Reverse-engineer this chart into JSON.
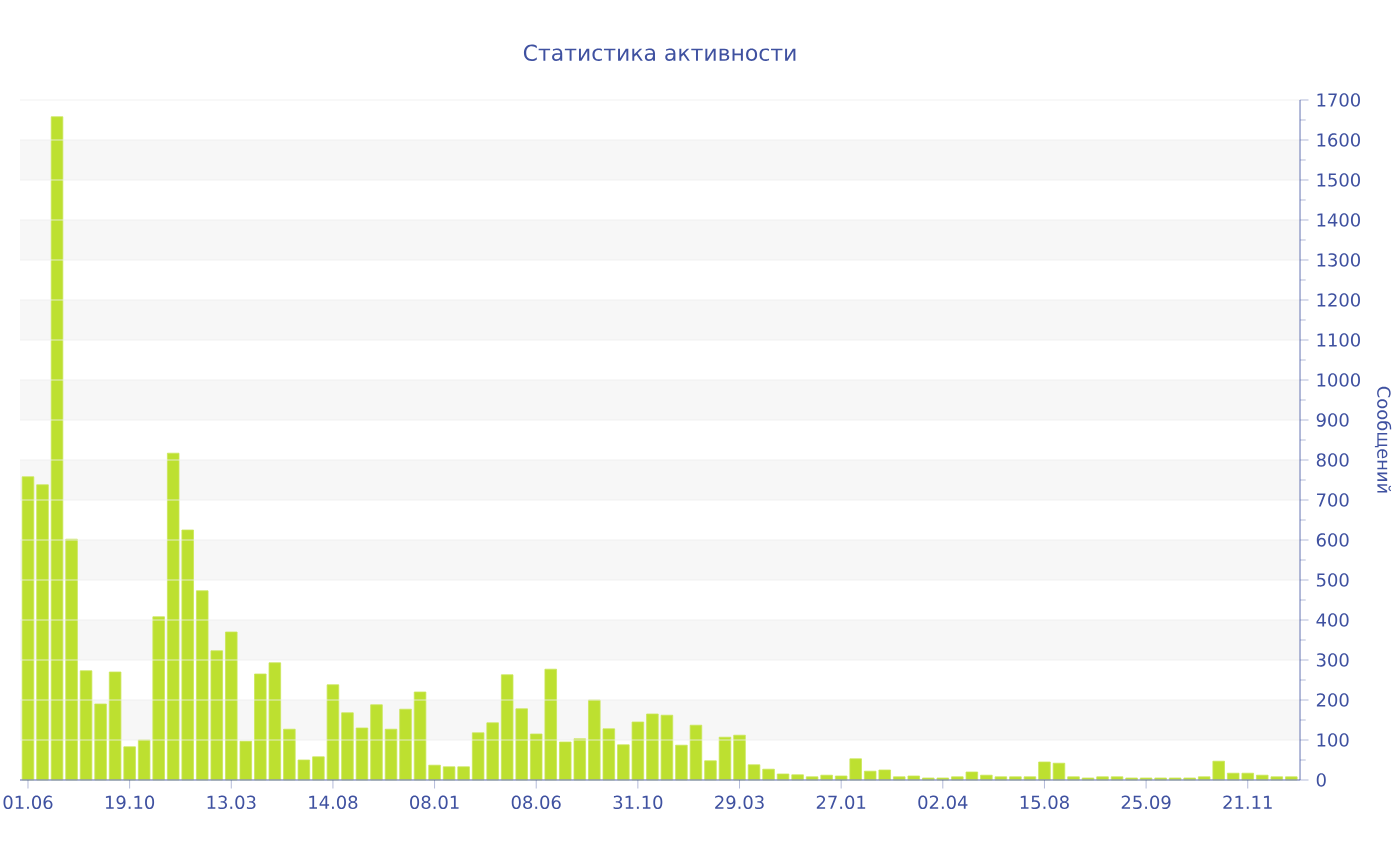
{
  "chart_data": {
    "type": "bar",
    "title": "Статистика активности",
    "ylabel": "Сообщений",
    "categories": [
      "01.06",
      null,
      null,
      null,
      null,
      null,
      null,
      "19.10",
      null,
      null,
      null,
      null,
      null,
      null,
      "13.03",
      null,
      null,
      null,
      null,
      null,
      null,
      "14.08",
      null,
      null,
      null,
      null,
      null,
      null,
      "08.01",
      null,
      null,
      null,
      null,
      null,
      null,
      "08.06",
      null,
      null,
      null,
      null,
      null,
      null,
      "31.10",
      null,
      null,
      null,
      null,
      null,
      null,
      "29.03",
      null,
      null,
      null,
      null,
      null,
      null,
      "27.01",
      null,
      null,
      null,
      null,
      null,
      null,
      "02.04",
      null,
      null,
      null,
      null,
      null,
      null,
      "15.08",
      null,
      null,
      null,
      null,
      null,
      null,
      "25.09",
      null,
      null,
      null,
      null,
      null,
      null,
      "21.11",
      null,
      null,
      null
    ],
    "values": [
      758,
      738,
      1658,
      602,
      273,
      190,
      270,
      83,
      100,
      408,
      817,
      625,
      473,
      323,
      370,
      97,
      265,
      293,
      127,
      50,
      58,
      238,
      168,
      130,
      188,
      127,
      177,
      220,
      37,
      33,
      33,
      118,
      143,
      263,
      178,
      115,
      277,
      95,
      103,
      200,
      128,
      88,
      145,
      165,
      162,
      87,
      137,
      48,
      107,
      112,
      38,
      27,
      15,
      13,
      8,
      12,
      10,
      53,
      22,
      25,
      8,
      10,
      5,
      5,
      8,
      20,
      12,
      8,
      8,
      8,
      45,
      42,
      8,
      5,
      8,
      8,
      5,
      5,
      5,
      5,
      5,
      8,
      47,
      17,
      17,
      12,
      8,
      8
    ],
    "color": "#bde030",
    "ylim": [
      0,
      1700
    ],
    "yticks": [
      0,
      100,
      200,
      300,
      400,
      500,
      600,
      700,
      800,
      900,
      1000,
      1100,
      1200,
      1300,
      1400,
      1500,
      1600,
      1700
    ],
    "grid": "y"
  }
}
